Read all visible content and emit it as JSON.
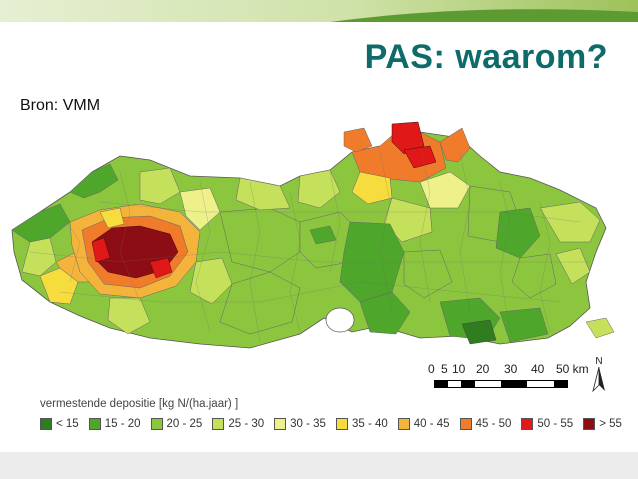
{
  "slide": {
    "title": "PAS: waarom?",
    "source": "Bron: VMM"
  },
  "colors": {
    "title": "#0e6b6a",
    "top_band": "#7fae3e",
    "top_band_light": "#d8e8b8"
  },
  "map": {
    "scale_labels": [
      "0",
      "5",
      "10",
      "20",
      "30",
      "40",
      "50 km"
    ],
    "north_label": "N"
  },
  "legend": {
    "title": "vermestende depositie [kg N/(ha.jaar) ]",
    "items": [
      {
        "label": "< 15",
        "color": "#2f7d1e"
      },
      {
        "label": "15 - 20",
        "color": "#4ea62a"
      },
      {
        "label": "20 - 25",
        "color": "#8cc63f"
      },
      {
        "label": "25 - 30",
        "color": "#c5e05a"
      },
      {
        "label": "30 - 35",
        "color": "#eef08a"
      },
      {
        "label": "35 - 40",
        "color": "#f6dc3c"
      },
      {
        "label": "40 - 45",
        "color": "#f4b43c"
      },
      {
        "label": "45 - 50",
        "color": "#f07b2a"
      },
      {
        "label": "50 - 55",
        "color": "#e01818"
      },
      {
        "label": "> 55",
        "color": "#8c0e14"
      }
    ]
  }
}
